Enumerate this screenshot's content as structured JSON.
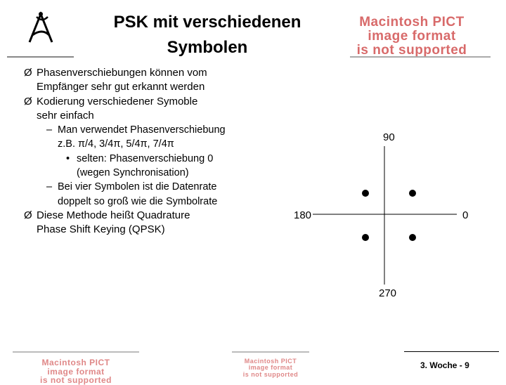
{
  "title": {
    "line1": "PSK mit verschiedenen",
    "line2": "Symbolen"
  },
  "pict_notice": {
    "line1": "Macintosh PICT",
    "line2": "image format",
    "line3": "is not supported"
  },
  "bullets": [
    {
      "text_lines": [
        "Phasenverschiebungen können vom",
        "Empfänger sehr gut erkannt werden"
      ]
    },
    {
      "text_lines": [
        "Kodierung verschiedener Symoble",
        "sehr einfach"
      ],
      "sub": [
        {
          "text_lines": [
            "Man verwendet Phasenverschiebung",
            "z.B. π/4, 3/4π, 5/4π, 7/4π"
          ],
          "sub": [
            {
              "text_lines": [
                "selten: Phasenverschiebung 0",
                "(wegen Synchronisation)"
              ]
            }
          ]
        },
        {
          "text_lines": [
            "Bei vier Symbolen ist die Datenrate",
            "doppelt so groß wie die Symbolrate"
          ]
        }
      ]
    },
    {
      "text_lines": [
        "Diese Methode heißt Quadrature",
        "Phase Shift Keying  (QPSK)"
      ]
    }
  ],
  "diagram": {
    "label_top": "90",
    "label_left": "180",
    "label_right": "0",
    "label_bottom": "270"
  },
  "footer": "3. Woche - 9"
}
